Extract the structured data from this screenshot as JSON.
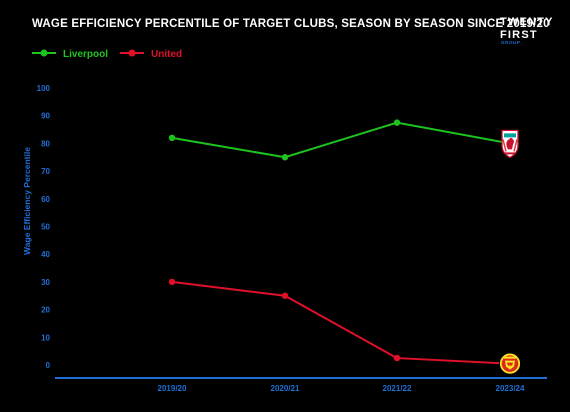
{
  "brand": {
    "line1": "TWENTY",
    "line2": "FIRST",
    "line3": "GROUP_"
  },
  "chart_data": {
    "type": "line",
    "title": "WAGE EFFICIENCY PERCENTILE OF TARGET CLUBS, SEASON BY SEASON SINCE 2019/20",
    "xlabel": "",
    "ylabel": "Wage Efficiency Percentile",
    "categories": [
      "2019/20",
      "2020/21",
      "2021/22",
      "2023/24"
    ],
    "ylim": [
      0,
      100
    ],
    "yticks": [
      0,
      10,
      20,
      30,
      40,
      50,
      60,
      70,
      80,
      90,
      100
    ],
    "grid": false,
    "legend": "top-left",
    "series": [
      {
        "name": "Liverpool",
        "color": "#1ec41e",
        "values": [
          82,
          75,
          87.5,
          80
        ],
        "end_icon": "liverpool-crest-icon"
      },
      {
        "name": "United",
        "color": "#e0102a",
        "values": [
          30,
          25,
          2.5,
          0.5
        ],
        "end_icon": "manchester-united-crest-icon"
      }
    ],
    "axis_color": "#1f6fd6"
  }
}
